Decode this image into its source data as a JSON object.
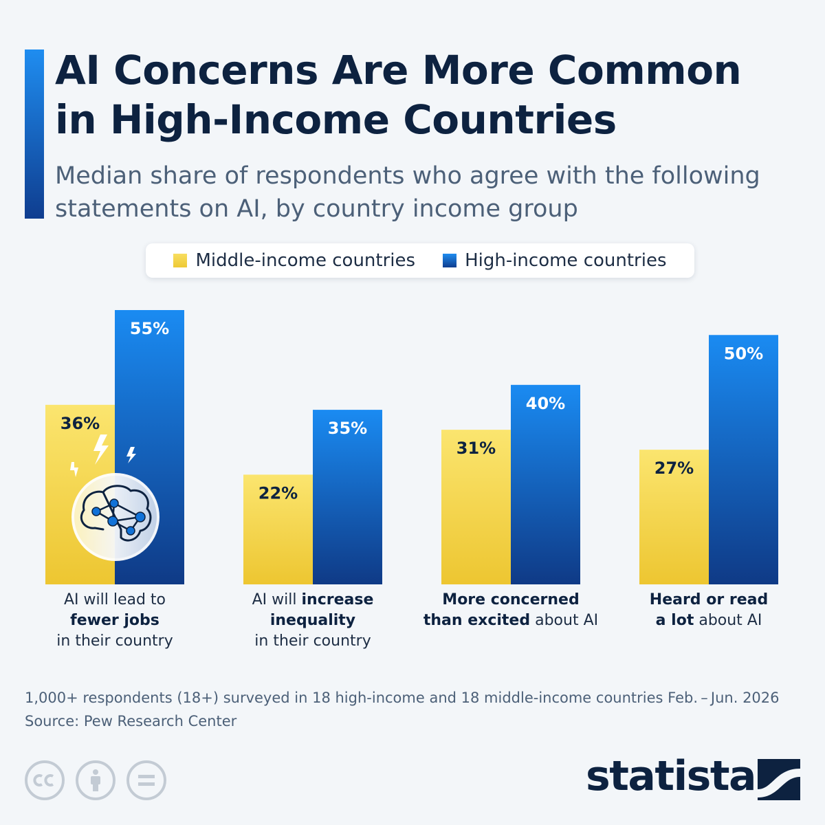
{
  "header": {
    "title_line1": "AI Concerns Are More Common",
    "title_line2": "in High-Income Countries",
    "subtitle_line1": "Median share of respondents who agree with the following",
    "subtitle_line2": "statements on AI, by country income group"
  },
  "legend": {
    "middle": "Middle-income countries",
    "high": "High-income countries"
  },
  "categories": [
    {
      "lines": [
        [
          {
            "t": "AI will lead to",
            "b": false
          }
        ],
        [
          {
            "t": "fewer jobs",
            "b": true
          }
        ],
        [
          {
            "t": "in their country",
            "b": false
          }
        ]
      ]
    },
    {
      "lines": [
        [
          {
            "t": "AI will ",
            "b": false
          },
          {
            "t": "increase",
            "b": true
          }
        ],
        [
          {
            "t": "inequality",
            "b": true
          }
        ],
        [
          {
            "t": "in their country",
            "b": false
          }
        ]
      ]
    },
    {
      "lines": [
        [
          {
            "t": "More concerned",
            "b": true
          }
        ],
        [
          {
            "t": "than excited",
            "b": true
          },
          {
            "t": " about AI",
            "b": false
          }
        ]
      ]
    },
    {
      "lines": [
        [
          {
            "t": "Heard or read",
            "b": true
          }
        ],
        [
          {
            "t": "a lot",
            "b": true
          },
          {
            "t": " about AI",
            "b": false
          }
        ]
      ]
    }
  ],
  "chart_data": {
    "type": "bar",
    "categories": [
      "AI will lead to fewer jobs in their country",
      "AI will increase inequality in their country",
      "More concerned than excited about AI",
      "Heard or read a lot about AI"
    ],
    "series": [
      {
        "name": "Middle-income countries",
        "values": [
          36,
          22,
          31,
          27
        ],
        "labels": [
          "36%",
          "22%",
          "31%",
          "27%"
        ],
        "color": "#f5d648"
      },
      {
        "name": "High-income countries",
        "values": [
          55,
          35,
          40,
          50
        ],
        "labels": [
          "55%",
          "35%",
          "40%",
          "50%"
        ],
        "color": "#1172d8"
      }
    ],
    "ylim": [
      0,
      55
    ],
    "grid": false,
    "legend_position": "top-center"
  },
  "footer": {
    "note": "1,000+ respondents (18+) surveyed in 18 high-income and 18 middle-income countries Feb. – Jun. 2026",
    "source": "Source: Pew Research Center",
    "brand": "statista"
  },
  "icons": {
    "cc": "creative-commons-icon",
    "by": "attribution-icon",
    "nd": "no-derivatives-icon",
    "illustration": "ai-brain-icon"
  }
}
